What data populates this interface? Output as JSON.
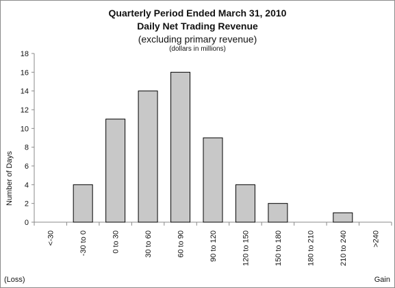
{
  "chart_data": {
    "type": "bar",
    "title_line1": "Quarterly Period Ended March 31, 2010",
    "title_line2": "Daily Net Trading Revenue",
    "subtitle": "(excluding primary revenue)",
    "units_note": "(dollars in millions)",
    "xlabel": "",
    "ylabel": "Number of Days",
    "left_annotation": "(Loss)",
    "right_annotation": "Gain",
    "categories": [
      "<-30",
      "-30 to 0",
      "0 to 30",
      "30 to 60",
      "60 to 90",
      "90 to 120",
      "120 to 150",
      "150 to 180",
      "180 to 210",
      "210 to 240",
      ">240"
    ],
    "values": [
      0,
      4,
      11,
      14,
      16,
      9,
      4,
      2,
      0,
      1,
      0
    ],
    "ylim": [
      0,
      18
    ],
    "yticks": [
      0,
      2,
      4,
      6,
      8,
      10,
      12,
      14,
      16,
      18
    ],
    "grid": false,
    "legend": "none",
    "colors": {
      "bar_fill": "#c8c8c8",
      "bar_stroke": "#000000",
      "axis": "#888888"
    }
  }
}
